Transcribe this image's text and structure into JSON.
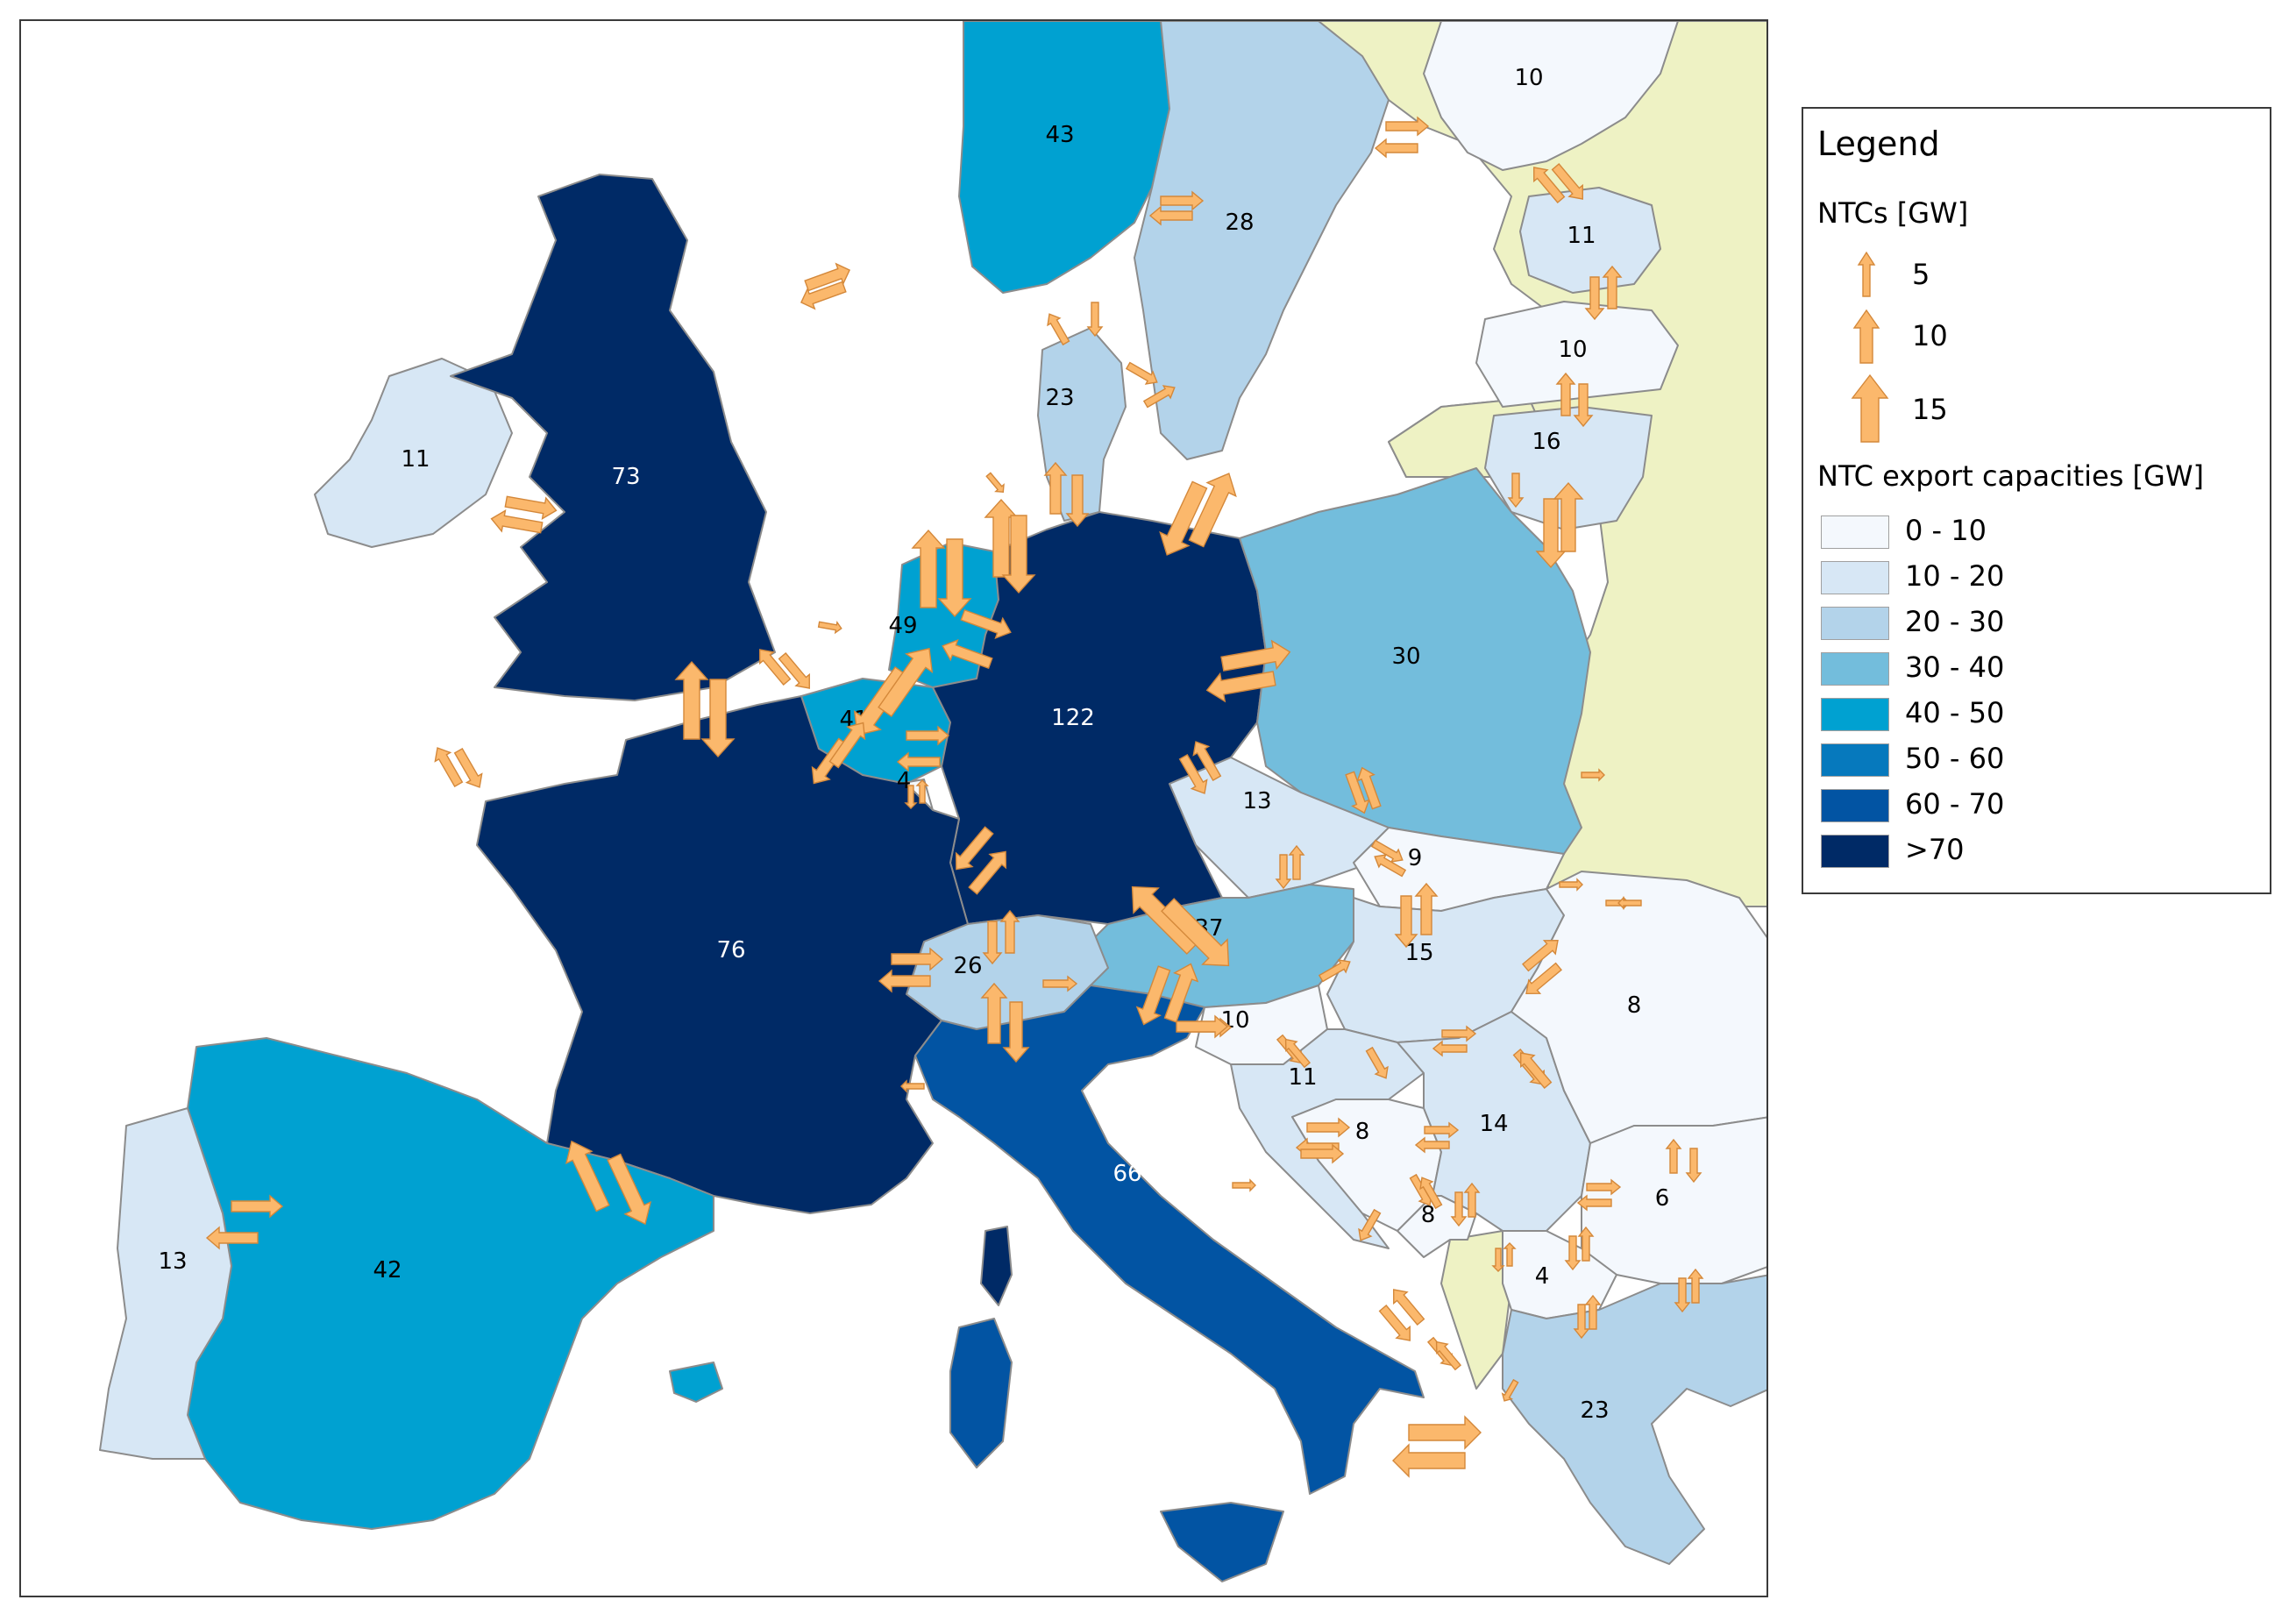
{
  "legend": {
    "title": "Legend",
    "ntc_section_title": "NTCs [GW]",
    "ntc_sizes": [
      "5",
      "10",
      "15"
    ],
    "export_section_title": "NTC export capacities [GW]",
    "classes": [
      {
        "label": "0 - 10",
        "color": "#f4f8fd"
      },
      {
        "label": "10 - 20",
        "color": "#d7e7f5"
      },
      {
        "label": "20 - 30",
        "color": "#b3d3ea"
      },
      {
        "label": "30 - 40",
        "color": "#73bddc"
      },
      {
        "label": "40 - 50",
        "color": "#00a1d1"
      },
      {
        "label": "50 - 60",
        "color": "#0679bd"
      },
      {
        "label": "60 - 70",
        "color": "#0254a3"
      },
      {
        "label": ">70",
        "color": "#002a66"
      }
    ]
  },
  "colors": {
    "non_modelled": "#eef2c4",
    "sea": "#ffffff",
    "border": "#8c8c8c",
    "arrow_fill": "#fbb86c"
  },
  "regions": [
    {
      "id": "ireland",
      "value": "11",
      "class": 1
    },
    {
      "id": "great-britain",
      "value": "73",
      "class": 7
    },
    {
      "id": "norway",
      "value": "43",
      "class": 4
    },
    {
      "id": "sweden",
      "value": "28",
      "class": 2
    },
    {
      "id": "finland",
      "value": "10",
      "class": 0
    },
    {
      "id": "estonia",
      "value": "11",
      "class": 1
    },
    {
      "id": "latvia",
      "value": "10",
      "class": 0
    },
    {
      "id": "lithuania",
      "value": "16",
      "class": 1
    },
    {
      "id": "denmark",
      "value": "23",
      "class": 2
    },
    {
      "id": "netherlands",
      "value": "49",
      "class": 4
    },
    {
      "id": "belgium",
      "value": "41",
      "class": 4
    },
    {
      "id": "luxembourg",
      "value": "4",
      "class": 0
    },
    {
      "id": "germany",
      "value": "122",
      "class": 7
    },
    {
      "id": "poland",
      "value": "30",
      "class": 3
    },
    {
      "id": "czech-republic",
      "value": "13",
      "class": 1
    },
    {
      "id": "slovakia",
      "value": "9",
      "class": 0
    },
    {
      "id": "austria",
      "value": "37",
      "class": 3
    },
    {
      "id": "hungary",
      "value": "15",
      "class": 1
    },
    {
      "id": "switzerland",
      "value": "26",
      "class": 2
    },
    {
      "id": "france",
      "value": "76",
      "class": 7
    },
    {
      "id": "italy",
      "value": "66",
      "class": 6
    },
    {
      "id": "slovenia",
      "value": "10",
      "class": 0
    },
    {
      "id": "croatia",
      "value": "11",
      "class": 1
    },
    {
      "id": "bosnia",
      "value": "8",
      "class": 0
    },
    {
      "id": "serbia",
      "value": "14",
      "class": 1
    },
    {
      "id": "romania",
      "value": "8",
      "class": 0
    },
    {
      "id": "bulgaria",
      "value": "6",
      "class": 0
    },
    {
      "id": "montenegro",
      "value": "8",
      "class": 0
    },
    {
      "id": "north-macedonia",
      "value": "4",
      "class": 0
    },
    {
      "id": "greece",
      "value": "23",
      "class": 2
    },
    {
      "id": "spain",
      "value": "42",
      "class": 4
    },
    {
      "id": "portugal",
      "value": "13",
      "class": 1
    }
  ]
}
